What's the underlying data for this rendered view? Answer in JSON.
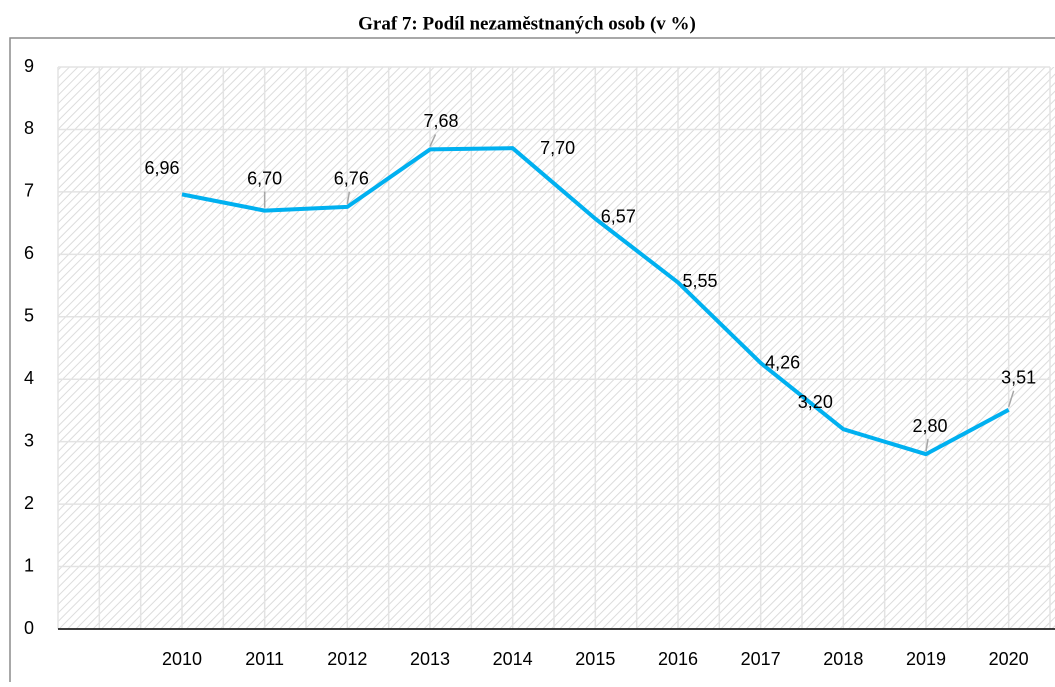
{
  "chart_data": {
    "type": "line",
    "title": "Graf 7: Podíl nezaměstnaných osob (v %)",
    "categories": [
      null,
      "2010",
      "2011",
      "2012",
      "2013",
      "2014",
      "2015",
      "2016",
      "2017",
      "2018",
      "2019",
      "2020"
    ],
    "series": [
      {
        "name": null,
        "color": "#00b0f0",
        "values": [
          null,
          6.96,
          6.7,
          6.76,
          7.68,
          7.7,
          6.57,
          5.55,
          4.26,
          3.2,
          2.8,
          3.51
        ],
        "value_labels": [
          null,
          "6,96",
          "6,70",
          "6,76",
          "7,68",
          "7,70",
          "6,57",
          "5,55",
          "4,26",
          "3,20",
          "2,80",
          "3,51"
        ]
      }
    ],
    "ylim": [
      0,
      9
    ],
    "yticks": [
      0,
      1,
      2,
      3,
      4,
      5,
      6,
      7,
      8,
      9
    ],
    "grid": true
  }
}
